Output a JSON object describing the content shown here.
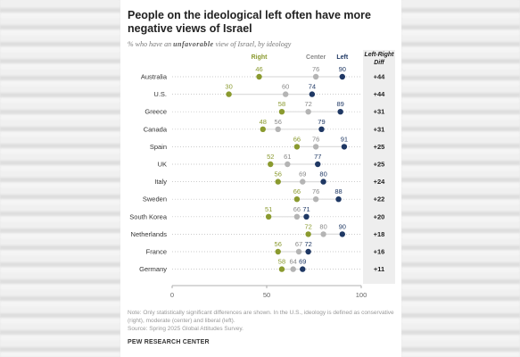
{
  "chart_data": {
    "type": "scatter",
    "title": "People on the ideological left often have more negative views of Israel",
    "subtitle_prefix": "% who have an ",
    "subtitle_em": "unfavorable",
    "subtitle_suffix": " view of Israel, by ideology",
    "series_labels": {
      "right": "Right",
      "center": "Center",
      "left": "Left",
      "diff": "Left-Right Diff"
    },
    "colors": {
      "right": "#8a9a2f",
      "center": "#b4b4b4",
      "left": "#1f3864",
      "diff_bg": "#eeeeee"
    },
    "xlim": [
      0,
      100
    ],
    "xticks": [
      "0",
      "50",
      "100"
    ],
    "rows": [
      {
        "country": "Australia",
        "right": 46,
        "center": 76,
        "left": 90,
        "diff": "+44"
      },
      {
        "country": "U.S.",
        "right": 30,
        "center": 60,
        "left": 74,
        "diff": "+44"
      },
      {
        "country": "Greece",
        "right": 58,
        "center": 72,
        "left": 89,
        "diff": "+31"
      },
      {
        "country": "Canada",
        "right": 48,
        "center": 56,
        "left": 79,
        "diff": "+31"
      },
      {
        "country": "Spain",
        "right": 66,
        "center": 76,
        "left": 91,
        "diff": "+25"
      },
      {
        "country": "UK",
        "right": 52,
        "center": 61,
        "left": 77,
        "diff": "+25"
      },
      {
        "country": "Italy",
        "right": 56,
        "center": 69,
        "left": 80,
        "diff": "+24"
      },
      {
        "country": "Sweden",
        "right": 66,
        "center": 76,
        "left": 88,
        "diff": "+22"
      },
      {
        "country": "South Korea",
        "right": 51,
        "center": 66,
        "left": 71,
        "diff": "+20"
      },
      {
        "country": "Netherlands",
        "right": 72,
        "center": 80,
        "left": 90,
        "diff": "+18"
      },
      {
        "country": "France",
        "right": 56,
        "center": 67,
        "left": 72,
        "diff": "+16"
      },
      {
        "country": "Germany",
        "right": 58,
        "center": 64,
        "left": 69,
        "diff": "+11"
      }
    ]
  },
  "footer": {
    "note": "Note: Only statistically significant differences are shown. In the U.S., ideology is defined as conservative (right), moderate (center) and liberal (left).",
    "source": "Source: Spring 2025 Global Attitudes Survey.",
    "brand": "PEW RESEARCH CENTER"
  }
}
